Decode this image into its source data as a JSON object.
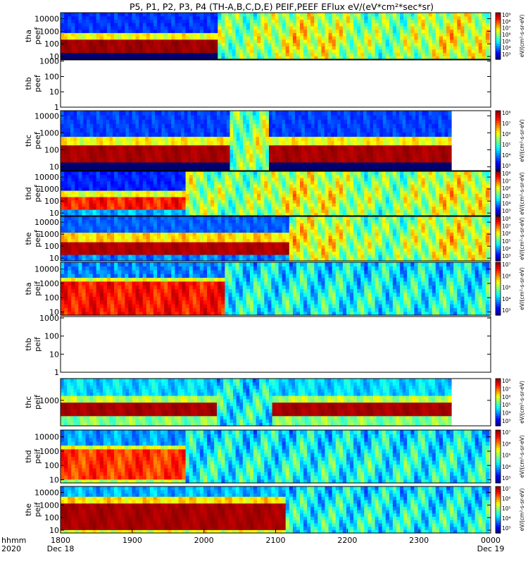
{
  "title": "P5, P1, P2, P3, P4 (TH-A,B,C,D,E) PEIF,PEEF EFlux eV/(eV*cm²*sec*sr)",
  "chart_data": {
    "type": "heatmap",
    "title": "P5, P1, P2, P3, P4 (TH-A,B,C,D,E) PEIF,PEEF EFlux eV/(eV*cm²*sec*sr)",
    "x_axis": {
      "ticks": [
        "1800",
        "1900",
        "2000",
        "2100",
        "2200",
        "2300",
        "0000"
      ],
      "tick_values_hours": [
        18,
        19,
        20,
        21,
        22,
        23,
        24
      ],
      "left_label_top": "hhmm",
      "left_label_bottom": "2020",
      "date_left": "Dec 18",
      "date_right": "Dec 19",
      "range": [
        18,
        24
      ]
    },
    "y_scale": "log",
    "colorbar_unit_label": "eV/(cm²-s-sr-eV)",
    "panels": [
      {
        "id": "tha-peef",
        "label1": "tha",
        "label2": "peef",
        "ticks": [
          "10",
          "100",
          "1000",
          "10000"
        ],
        "kind": "spec",
        "species": "e",
        "profile": "a",
        "end": 23.98,
        "ymin": 6,
        "ymax": 30000,
        "cb": [
          "10⁹",
          "10⁸",
          "10⁷",
          "10⁶",
          "10⁵",
          "10⁴",
          "10³"
        ]
      },
      {
        "id": "thb-peef",
        "label1": "thb",
        "label2": "peef",
        "ticks": [
          "1",
          "10",
          "100",
          "1000"
        ],
        "kind": "empty",
        "ymin": 1,
        "ymax": 1200
      },
      {
        "id": "thc-peef",
        "label1": "thc",
        "label2": "peef",
        "ticks": [
          "10",
          "100",
          "1000",
          "10000"
        ],
        "kind": "spec",
        "species": "e",
        "profile": "c",
        "end": 23.45,
        "ymin": 6,
        "ymax": 20000,
        "cb": [
          "10⁸",
          "10⁷",
          "10⁶",
          "10⁵",
          "10⁴",
          "10³"
        ]
      },
      {
        "id": "thd-peef",
        "label1": "thd",
        "label2": "peef",
        "ticks": [
          "10",
          "100",
          "1000",
          "10000"
        ],
        "kind": "spec",
        "species": "e",
        "profile": "d",
        "end": 23.98,
        "ymin": 6,
        "ymax": 30000,
        "cb": [
          "10⁸",
          "10⁷",
          "10⁶",
          "10⁵",
          "10⁴",
          "10³"
        ]
      },
      {
        "id": "the-peef",
        "label1": "the",
        "label2": "peef",
        "ticks": [
          "10",
          "100",
          "1000",
          "10000"
        ],
        "kind": "spec",
        "species": "e",
        "profile": "e",
        "end": 23.98,
        "ymin": 6,
        "ymax": 30000,
        "cb": [
          "10⁸",
          "10⁷",
          "10⁶",
          "10⁵",
          "10⁴",
          "10³"
        ]
      },
      {
        "id": "tha-peif",
        "label1": "tha",
        "label2": "peif",
        "ticks": [
          "10",
          "100",
          "1000",
          "10000"
        ],
        "kind": "spec",
        "species": "i",
        "profile": "a",
        "end": 23.98,
        "ymin": 6,
        "ymax": 30000,
        "cb": [
          "10⁷",
          "10⁶",
          "10⁵",
          "10⁴",
          "10³"
        ]
      },
      {
        "id": "thb-peif",
        "label1": "thb",
        "label2": "peif",
        "ticks": [
          "1",
          "10",
          "100",
          "1000"
        ],
        "kind": "empty",
        "ymin": 1,
        "ymax": 1200
      },
      {
        "id": "thc-peif",
        "label1": "thc",
        "label2": "peif",
        "ticks": [
          "1000"
        ],
        "kind": "spec",
        "species": "i",
        "profile": "c",
        "end": 23.45,
        "ymin": 30,
        "ymax": 20000,
        "cb": [
          "10⁸",
          "10⁷",
          "10⁶",
          "10⁵",
          "10⁴",
          "10³"
        ]
      },
      {
        "id": "thd-peif",
        "label1": "thd",
        "label2": "peif",
        "ticks": [
          "10",
          "100",
          "1000",
          "10000"
        ],
        "kind": "spec",
        "species": "i",
        "profile": "d",
        "end": 23.98,
        "ymin": 6,
        "ymax": 30000,
        "cb": [
          "10⁷",
          "10⁶",
          "10⁵",
          "10⁴",
          "10³"
        ]
      },
      {
        "id": "the-peif",
        "label1": "the",
        "label2": "peif",
        "ticks": [
          "10",
          "100",
          "1000",
          "10000"
        ],
        "kind": "spec",
        "species": "i",
        "profile": "e",
        "end": 23.98,
        "ymin": 6,
        "ymax": 30000,
        "cb": [
          "10⁷",
          "10⁶",
          "10⁵",
          "10⁴",
          "10³"
        ]
      }
    ]
  }
}
